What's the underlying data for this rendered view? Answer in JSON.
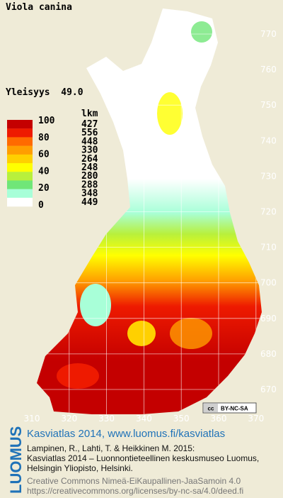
{
  "title": "Viola canina",
  "frequency": "Yleisyys  49.0",
  "legend": {
    "count_header": "lkm",
    "levels": [
      100,
      80,
      60,
      40,
      20,
      0
    ],
    "classes": [
      {
        "color": "#c40000",
        "count": 427
      },
      {
        "color": "#ee1a00",
        "count": 556
      },
      {
        "color": "#ff6a00",
        "count": 448
      },
      {
        "color": "#ff9e00",
        "count": 330
      },
      {
        "color": "#ffd000",
        "count": 264
      },
      {
        "color": "#ffff00",
        "count": 248
      },
      {
        "color": "#b8f03c",
        "count": 280
      },
      {
        "color": "#70e678",
        "count": 288
      },
      {
        "color": "#a8ffd8",
        "count": 348
      },
      {
        "color": "#ffffff",
        "count": 449
      }
    ]
  },
  "map": {
    "northing_labels": [
      770,
      760,
      750,
      740,
      730,
      720,
      710,
      700,
      690,
      680,
      670
    ],
    "easting_labels": [
      310,
      320,
      330,
      340,
      350,
      360,
      370
    ]
  },
  "license_badge": {
    "icon": "cc",
    "text": "BY-NC-SA"
  },
  "footer": {
    "logo": "LUOMUS",
    "link": "Kasviatlas 2014, www.luomus.fi/kasviatlas",
    "citation": [
      "Lampinen, R., Lahti, T. & Heikkinen M. 2015:",
      "Kasviatlas 2014 – Luonnontieteellinen keskusmuseo Luomus,",
      "Helsingin Yliopisto, Helsinki."
    ],
    "license": [
      "Creative Commons Nimeä-EiKaupallinen-JaaSamoin 4.0",
      "https://creativecommons.org/licenses/by-nc-sa/4.0/deed.fi"
    ]
  }
}
